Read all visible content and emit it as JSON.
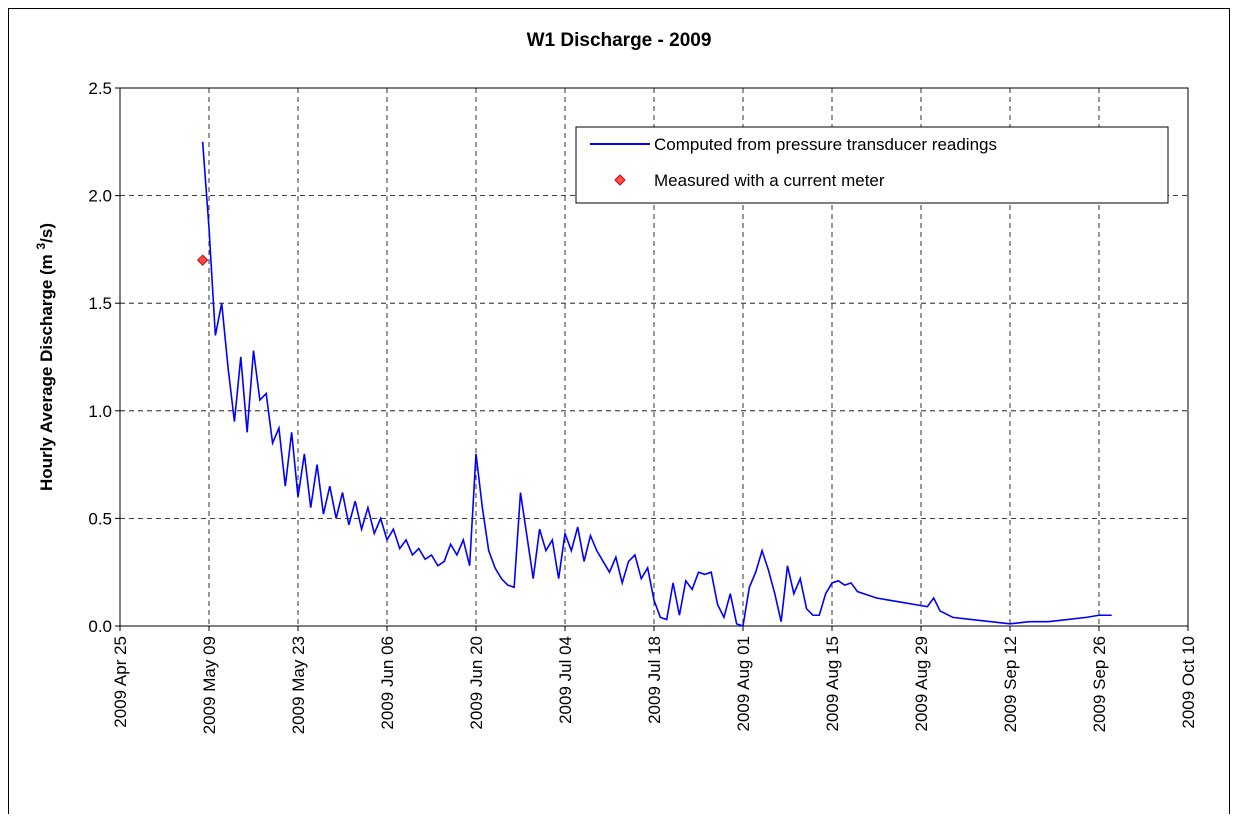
{
  "chart_data": {
    "type": "line",
    "title": "W1 Discharge - 2009",
    "ylabel": {
      "text": "Hourly Average Discharge (m ",
      "superscript": "3",
      "suffix": "/s)"
    },
    "xlim": [
      "2009-04-25",
      "2009-10-10"
    ],
    "xticks": [
      {
        "value": "2009-04-25",
        "label": "2009 Apr 25"
      },
      {
        "value": "2009-05-09",
        "label": "2009 May 09"
      },
      {
        "value": "2009-05-23",
        "label": "2009 May 23"
      },
      {
        "value": "2009-06-06",
        "label": "2009 Jun 06"
      },
      {
        "value": "2009-06-20",
        "label": "2009 Jun 20"
      },
      {
        "value": "2009-07-04",
        "label": "2009 Jul 04"
      },
      {
        "value": "2009-07-18",
        "label": "2009 Jul 18"
      },
      {
        "value": "2009-08-01",
        "label": "2009 Aug 01"
      },
      {
        "value": "2009-08-15",
        "label": "2009 Aug 15"
      },
      {
        "value": "2009-08-29",
        "label": "2009 Aug 29"
      },
      {
        "value": "2009-09-12",
        "label": "2009 Sep 12"
      },
      {
        "value": "2009-09-26",
        "label": "2009 Sep 26"
      },
      {
        "value": "2009-10-10",
        "label": "2009 Oct 10"
      }
    ],
    "ylim": [
      0,
      2.5
    ],
    "yticks": [
      {
        "value": 0,
        "label": "0.0"
      },
      0.5,
      {
        "value": 1,
        "label": "1.0"
      },
      1.5,
      {
        "value": 2,
        "label": "2.0"
      },
      2.5
    ],
    "grid": true,
    "legend": "upper right",
    "series": [
      {
        "name": "Computed from pressure transducer readings",
        "color": "#0000ff",
        "style": "line",
        "x": [
          "2009-05-08",
          "2009-05-09",
          "2009-05-10",
          "2009-05-11",
          "2009-05-12",
          "2009-05-13",
          "2009-05-14",
          "2009-05-15",
          "2009-05-16",
          "2009-05-17",
          "2009-05-18",
          "2009-05-19",
          "2009-05-20",
          "2009-05-21",
          "2009-05-22",
          "2009-05-23",
          "2009-05-24",
          "2009-05-25",
          "2009-05-26",
          "2009-05-27",
          "2009-05-28",
          "2009-05-29",
          "2009-05-30",
          "2009-05-31",
          "2009-06-01",
          "2009-06-02",
          "2009-06-03",
          "2009-06-04",
          "2009-06-05",
          "2009-06-06",
          "2009-06-07",
          "2009-06-08",
          "2009-06-09",
          "2009-06-10",
          "2009-06-11",
          "2009-06-12",
          "2009-06-13",
          "2009-06-14",
          "2009-06-15",
          "2009-06-16",
          "2009-06-17",
          "2009-06-18",
          "2009-06-19",
          "2009-06-20",
          "2009-06-21",
          "2009-06-22",
          "2009-06-23",
          "2009-06-24",
          "2009-06-25",
          "2009-06-26",
          "2009-06-27",
          "2009-06-28",
          "2009-06-29",
          "2009-06-30",
          "2009-07-01",
          "2009-07-02",
          "2009-07-03",
          "2009-07-04",
          "2009-07-05",
          "2009-07-06",
          "2009-07-07",
          "2009-07-08",
          "2009-07-09",
          "2009-07-10",
          "2009-07-11",
          "2009-07-12",
          "2009-07-13",
          "2009-07-14",
          "2009-07-15",
          "2009-07-16",
          "2009-07-17",
          "2009-07-18",
          "2009-07-19",
          "2009-07-20",
          "2009-07-21",
          "2009-07-22",
          "2009-07-23",
          "2009-07-24",
          "2009-07-25",
          "2009-07-26",
          "2009-07-27",
          "2009-07-28",
          "2009-07-29",
          "2009-07-30",
          "2009-07-31",
          "2009-08-01",
          "2009-08-02",
          "2009-08-03",
          "2009-08-04",
          "2009-08-05",
          "2009-08-06",
          "2009-08-07",
          "2009-08-08",
          "2009-08-09",
          "2009-08-10",
          "2009-08-11",
          "2009-08-12",
          "2009-08-13",
          "2009-08-14",
          "2009-08-15",
          "2009-08-16",
          "2009-08-17",
          "2009-08-18",
          "2009-08-19",
          "2009-08-20",
          "2009-08-22",
          "2009-08-24",
          "2009-08-26",
          "2009-08-28",
          "2009-08-30",
          "2009-08-31",
          "2009-09-01",
          "2009-09-03",
          "2009-09-06",
          "2009-09-09",
          "2009-09-12",
          "2009-09-15",
          "2009-09-18",
          "2009-09-21",
          "2009-09-24",
          "2009-09-26",
          "2009-09-28"
        ],
        "values": [
          2.25,
          1.85,
          1.35,
          1.5,
          1.2,
          0.95,
          1.25,
          0.9,
          1.28,
          1.05,
          1.08,
          0.85,
          0.92,
          0.65,
          0.9,
          0.6,
          0.8,
          0.55,
          0.75,
          0.52,
          0.65,
          0.5,
          0.62,
          0.47,
          0.58,
          0.45,
          0.55,
          0.43,
          0.5,
          0.4,
          0.45,
          0.36,
          0.4,
          0.33,
          0.36,
          0.31,
          0.33,
          0.28,
          0.3,
          0.38,
          0.33,
          0.4,
          0.28,
          0.8,
          0.55,
          0.35,
          0.27,
          0.22,
          0.19,
          0.18,
          0.62,
          0.42,
          0.22,
          0.45,
          0.35,
          0.4,
          0.22,
          0.43,
          0.35,
          0.46,
          0.3,
          0.42,
          0.35,
          0.3,
          0.25,
          0.32,
          0.2,
          0.3,
          0.33,
          0.22,
          0.27,
          0.12,
          0.04,
          0.03,
          0.2,
          0.05,
          0.21,
          0.17,
          0.25,
          0.24,
          0.25,
          0.1,
          0.04,
          0.15,
          0.01,
          0,
          0.18,
          0.25,
          0.35,
          0.26,
          0.15,
          0.02,
          0.28,
          0.15,
          0.22,
          0.08,
          0.05,
          0.05,
          0.15,
          0.2,
          0.21,
          0.19,
          0.2,
          0.16,
          0.15,
          0.13,
          0.12,
          0.11,
          0.1,
          0.09,
          0.13,
          0.07,
          0.04,
          0.03,
          0.02,
          0.01,
          0.02,
          0.02,
          0.03,
          0.04,
          0.05,
          0.05
        ]
      },
      {
        "name": "Measured with a current meter",
        "color": "#ff4d4d",
        "style": "marker",
        "x": [
          "2009-05-08"
        ],
        "values": [
          1.7
        ]
      }
    ]
  }
}
